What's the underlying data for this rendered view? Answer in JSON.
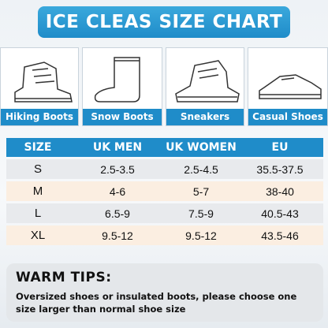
{
  "header": {
    "title": "ICE CLEAS SIZE CHART"
  },
  "shoes": [
    {
      "label": "Hiking Boots"
    },
    {
      "label": "Snow Boots"
    },
    {
      "label": "Sneakers"
    },
    {
      "label": "Casual Shoes"
    }
  ],
  "table": {
    "columns": [
      "SIZE",
      "UK MEN",
      "UK WOMEN",
      "EU"
    ],
    "rows": [
      [
        "S",
        "2.5-3.5",
        "2.5-4.5",
        "35.5-37.5"
      ],
      [
        "M",
        "4-6",
        "5-7",
        "38-40"
      ],
      [
        "L",
        "6.5-9",
        "7.5-9",
        "40.5-43"
      ],
      [
        "XL",
        "9.5-12",
        "9.5-12",
        "43.5-46"
      ]
    ]
  },
  "tips": {
    "title": "WARM TIPS:",
    "text": "Oversized shoes or insulated boots, please choose one size larger than normal shoe size"
  }
}
